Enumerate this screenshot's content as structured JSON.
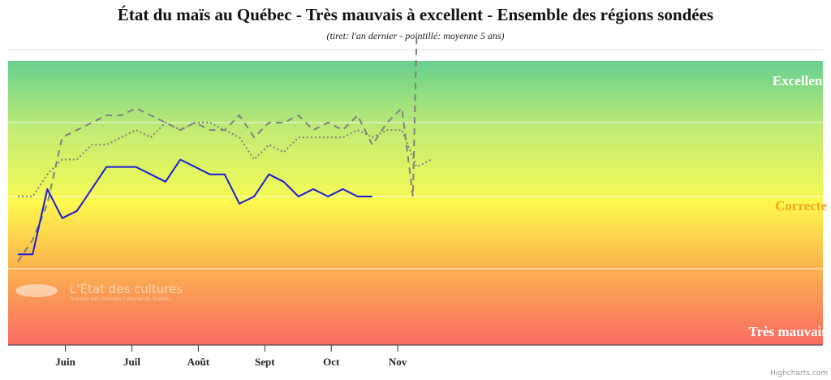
{
  "title": "État du maïs au Québec - Très mauvais à excellent - Ensemble des régions sondées",
  "subtitle": "(tiret: l'an dernier - pointillé: moyenne 5 ans)",
  "credits": "Highcharts.com",
  "watermark": {
    "title": "L'État des cultures",
    "subtitle": "Tournée des Grandes Cultures du Québec"
  },
  "chart_data": {
    "type": "line",
    "x_axis": {
      "ticks": [
        "Juin",
        "Juil",
        "Août",
        "Sept",
        "Oct",
        "Nov"
      ],
      "tick_index": [
        6,
        15,
        24,
        33,
        42,
        51
      ],
      "max_index": 55
    },
    "y_axis": {
      "min": 1,
      "max": 5,
      "plot_bands": [
        {
          "label": "Excellent",
          "value": 5,
          "color": "#ffffff"
        },
        {
          "label": "Correcte",
          "value": 3,
          "color": "#f6a623"
        },
        {
          "label": "Très mauvais",
          "value": 1,
          "color": "#ffffff"
        }
      ],
      "gridlines": [
        2,
        3,
        4
      ]
    },
    "series": [
      {
        "role": "current",
        "color": "#1a1ad6",
        "dash": "solid",
        "points": [
          [
            0,
            2.2
          ],
          [
            2,
            2.2
          ],
          [
            4,
            3.1
          ],
          [
            6,
            2.7
          ],
          [
            8,
            2.8
          ],
          [
            12,
            3.4
          ],
          [
            16,
            3.4
          ],
          [
            20,
            3.2
          ],
          [
            22,
            3.5
          ],
          [
            26,
            3.3
          ],
          [
            28,
            3.3
          ],
          [
            30,
            2.9
          ],
          [
            32,
            3.0
          ],
          [
            34,
            3.3
          ],
          [
            36,
            3.2
          ],
          [
            38,
            3.0
          ],
          [
            40,
            3.1
          ],
          [
            42,
            3.0
          ],
          [
            44,
            3.1
          ],
          [
            46,
            3.0
          ],
          [
            48,
            3.0
          ]
        ]
      },
      {
        "role": "last-year",
        "color": "#7f7f7f",
        "dash": "dash",
        "points": [
          [
            0,
            2.1
          ],
          [
            2,
            2.4
          ],
          [
            4,
            2.9
          ],
          [
            6,
            3.8
          ],
          [
            8,
            3.9
          ],
          [
            12,
            4.1
          ],
          [
            14,
            4.1
          ],
          [
            16,
            4.2
          ],
          [
            18,
            4.1
          ],
          [
            20,
            4.0
          ],
          [
            22,
            3.9
          ],
          [
            24,
            4.0
          ],
          [
            26,
            3.9
          ],
          [
            28,
            3.9
          ],
          [
            30,
            4.1
          ],
          [
            32,
            3.8
          ],
          [
            34,
            4.0
          ],
          [
            36,
            4.0
          ],
          [
            38,
            4.1
          ],
          [
            40,
            3.9
          ],
          [
            42,
            4.0
          ],
          [
            44,
            3.9
          ],
          [
            46,
            4.1
          ],
          [
            48,
            3.7
          ],
          [
            50,
            4.0
          ],
          [
            52,
            4.2
          ],
          [
            53.5,
            3.0
          ],
          [
            54,
            5.2
          ]
        ]
      },
      {
        "role": "five-year-average",
        "color": "#7f7f7f",
        "dash": "dot",
        "points": [
          [
            0,
            3.0
          ],
          [
            2,
            3.0
          ],
          [
            4,
            3.3
          ],
          [
            6,
            3.5
          ],
          [
            8,
            3.5
          ],
          [
            10,
            3.7
          ],
          [
            12,
            3.7
          ],
          [
            16,
            3.9
          ],
          [
            18,
            3.8
          ],
          [
            20,
            4.0
          ],
          [
            22,
            3.9
          ],
          [
            24,
            4.0
          ],
          [
            26,
            4.0
          ],
          [
            28,
            3.9
          ],
          [
            30,
            3.8
          ],
          [
            32,
            3.5
          ],
          [
            34,
            3.7
          ],
          [
            36,
            3.6
          ],
          [
            38,
            3.8
          ],
          [
            40,
            3.8
          ],
          [
            44,
            3.8
          ],
          [
            46,
            3.9
          ],
          [
            48,
            3.8
          ],
          [
            50,
            3.9
          ],
          [
            52,
            3.9
          ],
          [
            54,
            3.4
          ],
          [
            56,
            3.5
          ]
        ]
      }
    ]
  }
}
